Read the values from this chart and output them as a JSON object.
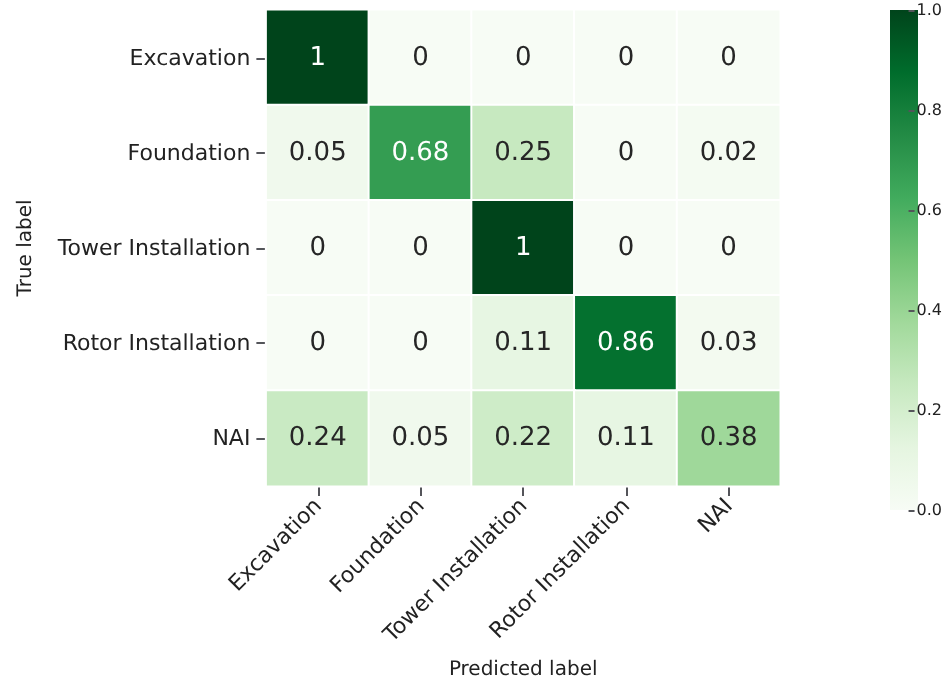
{
  "chart_data": {
    "type": "heatmap",
    "xlabel": "Predicted label",
    "ylabel": "True label",
    "categories": [
      "Excavation",
      "Foundation",
      "Tower Installation",
      "Rotor Installation",
      "NAI"
    ],
    "y_categories": [
      "Excavation",
      "Foundation",
      "Tower Installation",
      "Rotor Installation",
      "NAI"
    ],
    "cells": [
      [
        1,
        0,
        0,
        0,
        0
      ],
      [
        0.05,
        0.68,
        0.25,
        0,
        0.02
      ],
      [
        0,
        0,
        1,
        0,
        0
      ],
      [
        0,
        0,
        0.11,
        0.86,
        0.03
      ],
      [
        0.24,
        0.05,
        0.22,
        0.11,
        0.38
      ]
    ],
    "data_labels": true,
    "clim": [
      0,
      1
    ],
    "cticks": [
      {
        "value": 0,
        "label": "0.0"
      },
      0.2,
      0.4,
      0.6,
      0.8,
      {
        "value": 1,
        "label": "1.0"
      }
    ]
  }
}
